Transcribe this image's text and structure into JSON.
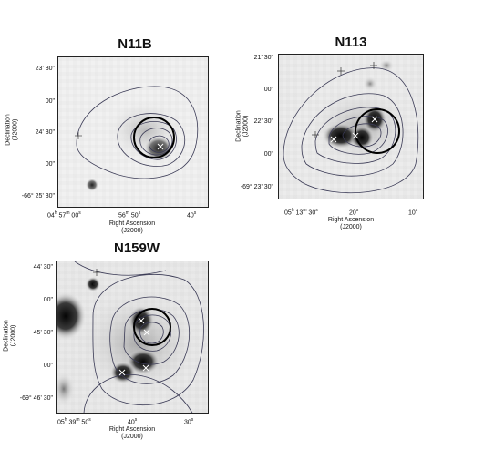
{
  "panels": [
    {
      "title": "N11B",
      "yticks": [
        "-66° 23' 30\"",
        "00\"",
        "24' 30\"",
        "00\"",
        "-66° 25' 30\""
      ],
      "yticks_short": [
        "23' 30\"",
        "00\"",
        "24' 30\"",
        "00\"",
        "-66° 25' 30\""
      ],
      "xticks": [
        "04h 57m 00s",
        "56m 50s",
        "40s"
      ],
      "xlabel": "Right Ascension",
      "xlabel_sub": "(J2000)",
      "ylabel": "Declination",
      "ylabel_sub": "(J2000)"
    },
    {
      "title": "N113",
      "yticks_short": [
        "21' 30\"",
        "00\"",
        "22' 30\"",
        "00\"",
        "-69° 23' 30\""
      ],
      "xticks": [
        "05h 13m 30s",
        "20s",
        "10s"
      ],
      "xlabel": "Right Ascension",
      "xlabel_sub": "(J2000)",
      "ylabel": "Declination",
      "ylabel_sub": "(J2000)"
    },
    {
      "title": "N159W",
      "yticks_short": [
        "44' 30\"",
        "00\"",
        "45' 30\"",
        "00\"",
        "-69° 46' 30\""
      ],
      "xticks": [
        "05h 39m 50s",
        "40s",
        "30s"
      ],
      "xlabel": "Right Ascension",
      "xlabel_sub": "(J2000)",
      "ylabel": "Declination",
      "ylabel_sub": "(J2000)"
    }
  ],
  "tick_parts": {
    "n11b": [
      [
        "04",
        "h",
        " 57",
        "m",
        " 00",
        "s"
      ],
      [
        "56",
        "m",
        " 50",
        "s"
      ],
      [
        "40",
        "s"
      ]
    ],
    "n113": [
      [
        "05",
        "h",
        " 13",
        "m",
        " 30",
        "s"
      ],
      [
        "20",
        "s"
      ],
      [
        "10",
        "s"
      ]
    ],
    "n159w": [
      [
        "05",
        "h",
        " 39",
        "m",
        " 50",
        "s"
      ],
      [
        "40",
        "s"
      ],
      [
        "30",
        "s"
      ]
    ]
  }
}
